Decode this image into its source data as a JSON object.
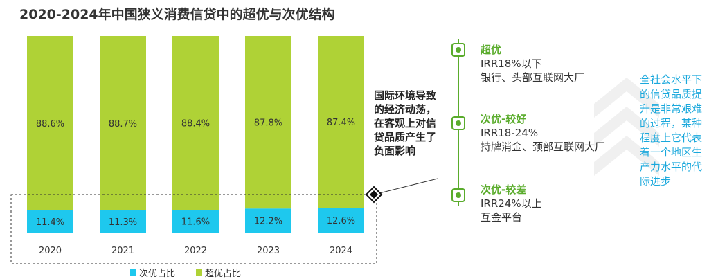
{
  "title": "2020-2024年中国狭义消费信贷中的超优与次优结构",
  "colors": {
    "superior": "#afd236",
    "subprime": "#1ec8ee",
    "accent_green": "#5aac2c",
    "note_blue": "#1aa8dc"
  },
  "chart_data": {
    "type": "bar",
    "stacked": true,
    "categories": [
      "2020",
      "2021",
      "2022",
      "2023",
      "2024"
    ],
    "series": [
      {
        "name": "次优占比",
        "values": [
          11.4,
          11.3,
          11.6,
          12.2,
          12.6
        ],
        "labels": [
          "11.4%",
          "11.3%",
          "11.6%",
          "12.2%",
          "12.6%"
        ]
      },
      {
        "name": "超优占比",
        "values": [
          88.6,
          88.7,
          88.4,
          87.8,
          87.4
        ],
        "labels": [
          "88.6%",
          "88.7%",
          "88.4%",
          "87.8%",
          "87.4%"
        ]
      }
    ],
    "ylim": [
      0,
      100
    ],
    "grid": false,
    "legend_position": "bottom"
  },
  "callout": "国际环境导致的经济动荡，在客观上对信贷品质产生了负面影响",
  "tiers": [
    {
      "name": "超优",
      "range": "IRR18%以下",
      "examples": "银行、头部互联网大厂"
    },
    {
      "name": "次优-较好",
      "range": "IRR18-24%",
      "examples": "持牌消金、颈部互联网大厂"
    },
    {
      "name": "次优-较差",
      "range": "IRR24%以上",
      "examples": "互金平台"
    }
  ],
  "note": "全社会水平下的信贷品质提升是非常艰难的过程，某种程度上它代表着一个地区生产力水平的代际进步"
}
